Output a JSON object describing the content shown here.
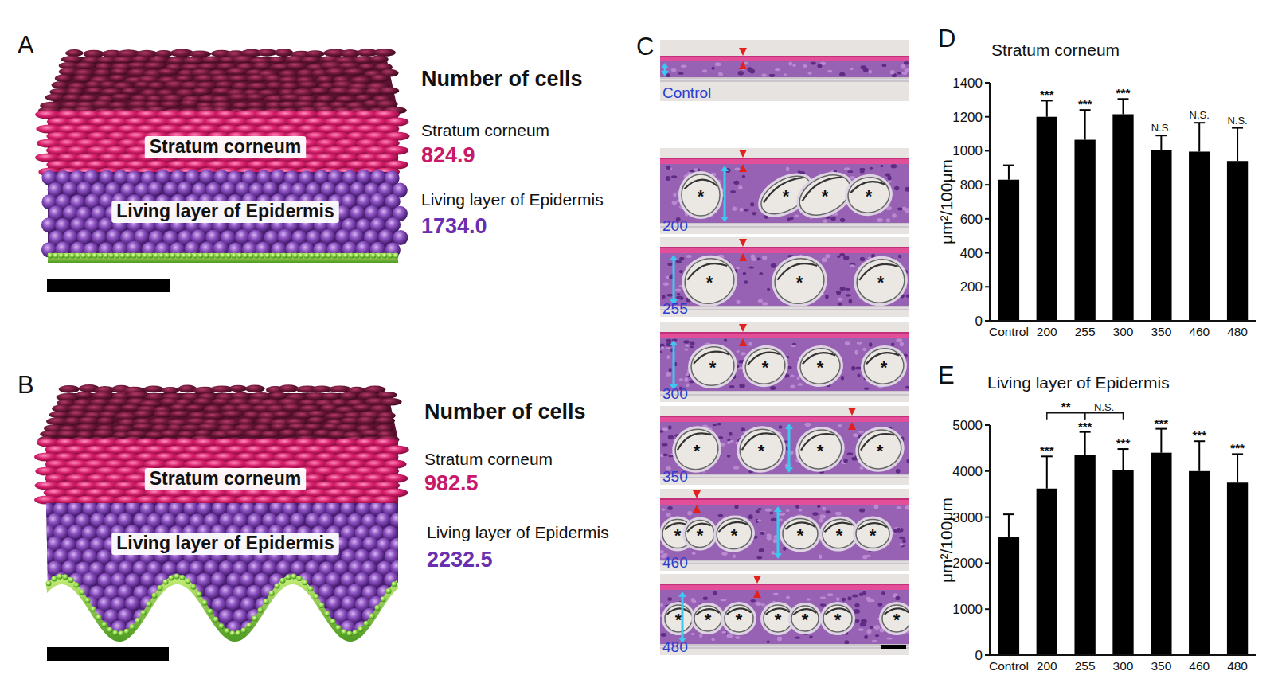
{
  "panel_labels": [
    "A",
    "B",
    "C",
    "D",
    "E"
  ],
  "illustrations": [
    {
      "layer_labels": [
        "Stratum corneum",
        "Living layer of Epidermis"
      ],
      "heading": "Number of cells",
      "counts": [
        {
          "name": "Stratum corneum",
          "value": "824.9"
        },
        {
          "name": "Living layer of Epidermis",
          "value": "1734.0"
        }
      ]
    },
    {
      "layer_labels": [
        "Stratum corneum",
        "Living layer of Epidermis"
      ],
      "heading": "Number of cells",
      "counts": [
        {
          "name": "Stratum corneum",
          "value": "982.5"
        },
        {
          "name": "Living layer of Epidermis",
          "value": "2232.5"
        }
      ]
    }
  ],
  "histology": {
    "samples": [
      "Control",
      "200",
      "255",
      "300",
      "350",
      "460",
      "480"
    ],
    "egg_marker": "*"
  },
  "chart_data": [
    {
      "type": "bar",
      "title": "Stratum corneum",
      "y_label": "μm²/100μm",
      "categories": [
        "Control",
        "200",
        "255",
        "300",
        "350",
        "460",
        "480"
      ],
      "values": [
        830,
        1200,
        1065,
        1215,
        1005,
        995,
        940
      ],
      "errors": [
        85,
        95,
        175,
        90,
        85,
        170,
        195
      ],
      "significance": [
        null,
        "***",
        "***",
        "***",
        "N.S.",
        "N.S.",
        "N.S."
      ],
      "color": "#000000",
      "ylim": [
        0,
        1400
      ],
      "yticks": [
        0,
        200,
        400,
        600,
        800,
        1000,
        1200,
        1400
      ]
    },
    {
      "type": "bar",
      "title": "Living layer of Epidermis",
      "y_label": "μm²/100μm",
      "categories": [
        "Control",
        "200",
        "255",
        "300",
        "350",
        "460",
        "480"
      ],
      "values": [
        2560,
        3620,
        4350,
        4030,
        4400,
        4000,
        3750
      ],
      "errors": [
        500,
        700,
        500,
        450,
        520,
        650,
        620
      ],
      "significance": [
        null,
        "***",
        "***",
        "***",
        "***",
        "***",
        "***"
      ],
      "comparisons": [
        {
          "pair": [
            "200",
            "255"
          ],
          "label": "**"
        },
        {
          "pair": [
            "255",
            "300"
          ],
          "label": "N.S."
        }
      ],
      "color": "#000000",
      "ylim": [
        0,
        5000
      ],
      "yticks": [
        0,
        1000,
        2000,
        3000,
        4000,
        5000
      ]
    }
  ]
}
